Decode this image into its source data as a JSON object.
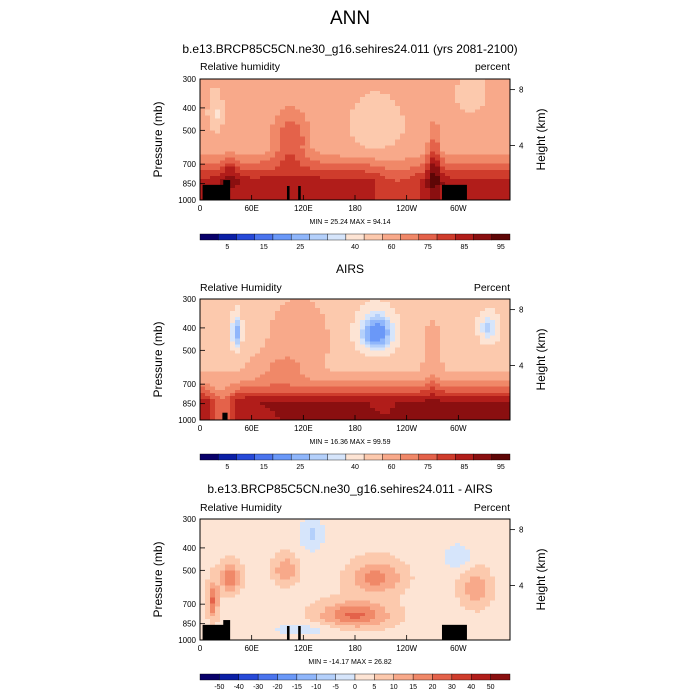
{
  "figure": {
    "title": "ANN"
  },
  "colors": {
    "palette": [
      "#08006a",
      "#0a1fa6",
      "#2649d8",
      "#4a74ee",
      "#6a98f8",
      "#8fb6fb",
      "#b4d0fb",
      "#d6e5fb",
      "#fde4d4",
      "#fcc9ad",
      "#f8a98a",
      "#f08868",
      "#e4624a",
      "#cf3c2c",
      "#b11d1a",
      "#8a0f10",
      "#5e0606"
    ],
    "land": "#000000"
  },
  "chart_data": [
    {
      "type": "heatmap",
      "title": "b.e13.BRCP85C5CN.ne30_g16.sehires24.011 (yrs 2081-2100)",
      "left_label": "Relative humidity",
      "right_label": "percent",
      "xlabel": "",
      "ylabel": "Pressure (mb)",
      "ylabel_right": "Height (km)",
      "x_ticks": [
        "0",
        "60E",
        "120E",
        "180",
        "120W",
        "60W"
      ],
      "y_ticks": [
        "300",
        "400",
        "500",
        "700",
        "850",
        "1000"
      ],
      "y_ticks_right": [
        "8",
        "4"
      ],
      "min_max": "MIN = 25.24  MAX = 94.14",
      "colorbar_labels": [
        "5",
        "15",
        "25",
        "40",
        "60",
        "75",
        "85",
        "95"
      ],
      "colorbar_levels": [
        0,
        5,
        10,
        15,
        20,
        25,
        30,
        35,
        40,
        50,
        60,
        70,
        75,
        80,
        85,
        90,
        95,
        100
      ],
      "ylim": [
        1000,
        300
      ],
      "variant": "model"
    },
    {
      "type": "heatmap",
      "title": "AIRS",
      "left_label": "Relative Humidity",
      "right_label": "Percent",
      "xlabel": "",
      "ylabel": "Pressure (mb)",
      "ylabel_right": "Height (km)",
      "x_ticks": [
        "0",
        "60E",
        "120E",
        "180",
        "120W",
        "60W"
      ],
      "y_ticks": [
        "300",
        "400",
        "500",
        "700",
        "850",
        "1000"
      ],
      "y_ticks_right": [
        "8",
        "4"
      ],
      "min_max": "MIN = 16.36  MAX = 99.59",
      "colorbar_labels": [
        "5",
        "15",
        "25",
        "40",
        "60",
        "75",
        "85",
        "95"
      ],
      "colorbar_levels": [
        0,
        5,
        10,
        15,
        20,
        25,
        30,
        35,
        40,
        50,
        60,
        70,
        75,
        80,
        85,
        90,
        95,
        100
      ],
      "ylim": [
        1000,
        300
      ],
      "variant": "obs"
    },
    {
      "type": "heatmap",
      "title": "b.e13.BRCP85C5CN.ne30_g16.sehires24.011 - AIRS",
      "left_label": "Relative Humidity",
      "right_label": "Percent",
      "xlabel": "",
      "ylabel": "Pressure (mb)",
      "ylabel_right": "Height (km)",
      "x_ticks": [
        "0",
        "60E",
        "120E",
        "180",
        "120W",
        "60W"
      ],
      "y_ticks": [
        "300",
        "400",
        "500",
        "700",
        "850",
        "1000"
      ],
      "y_ticks_right": [
        "8",
        "4"
      ],
      "min_max": "MIN = -14.17  MAX = 26.82",
      "colorbar_labels": [
        "-50",
        "-40",
        "-30",
        "-20",
        "-15",
        "-10",
        "-5",
        "0",
        "5",
        "10",
        "15",
        "20",
        "30",
        "40",
        "50"
      ],
      "colorbar_levels": [
        -60,
        -50,
        -40,
        -30,
        -20,
        -15,
        -10,
        -5,
        0,
        5,
        10,
        15,
        20,
        30,
        40,
        50,
        60
      ],
      "ylim": [
        1000,
        300
      ],
      "variant": "diff"
    }
  ]
}
